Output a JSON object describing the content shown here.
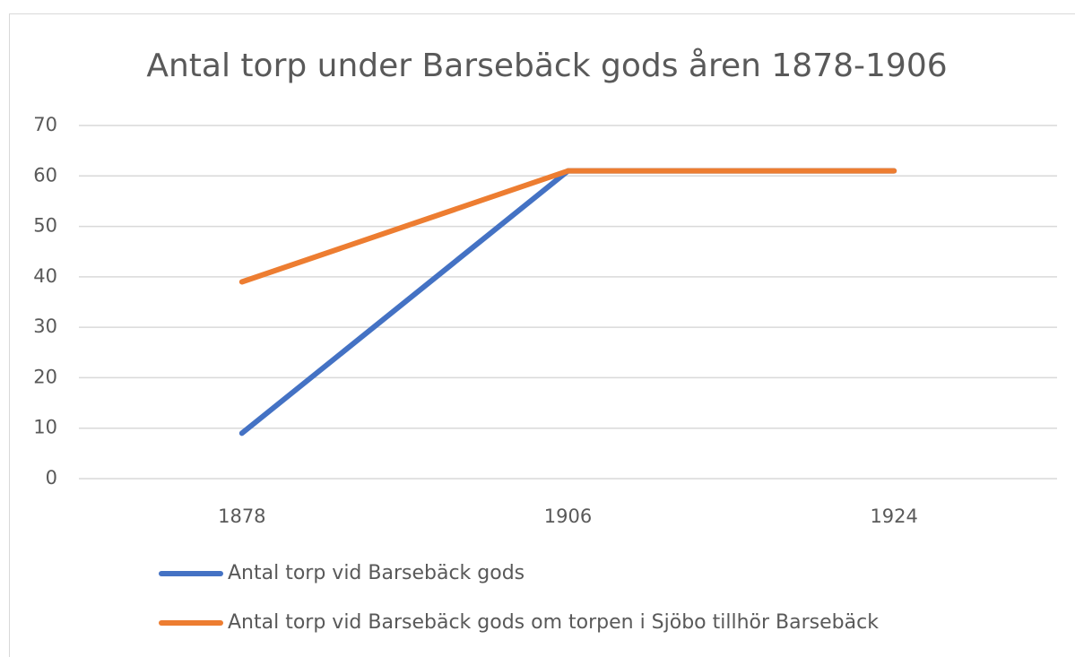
{
  "chart_data": {
    "type": "line",
    "title": "Antal torp under Barsebäck gods åren 1878-1906",
    "categories": [
      "1878",
      "1906",
      "1924"
    ],
    "series": [
      {
        "name": "Antal torp vid Barsebäck gods",
        "color": "#4472c4",
        "values": [
          9,
          61,
          61
        ]
      },
      {
        "name": "Antal torp vid Barsebäck gods om torpen i Sjöbo tillhör Barsebäck",
        "color": "#ed7d31",
        "values": [
          39,
          61,
          61
        ]
      }
    ],
    "ylim": [
      0,
      70
    ],
    "yticks": [
      0,
      10,
      20,
      30,
      40,
      50,
      60,
      70
    ],
    "grid": true,
    "legend": "bottom"
  }
}
